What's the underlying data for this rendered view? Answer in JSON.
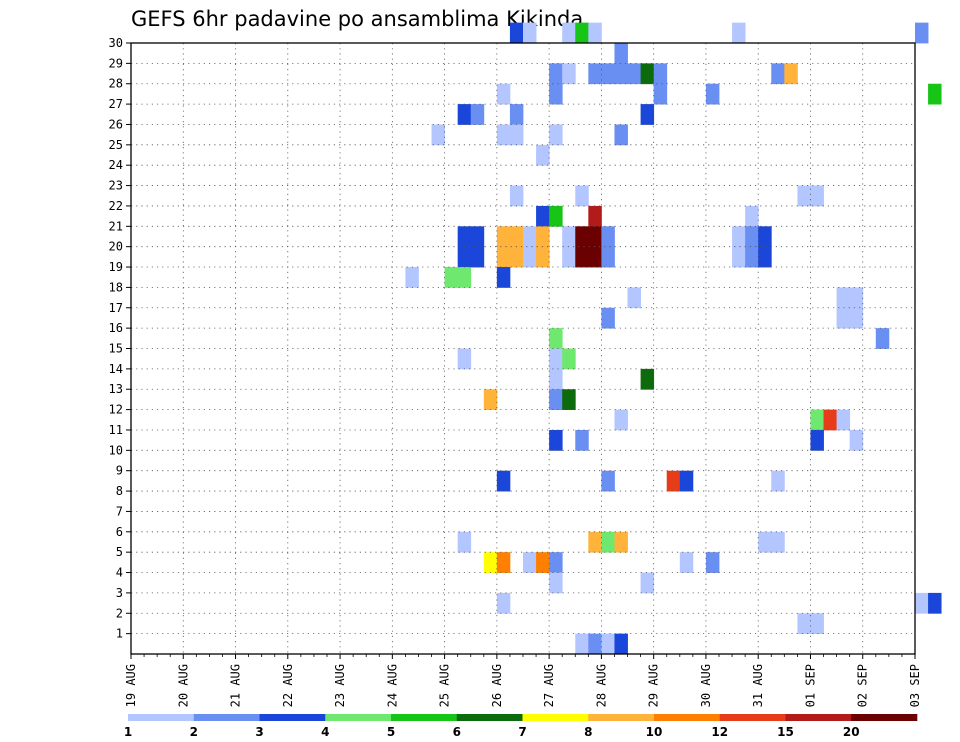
{
  "title": "GEFS 6hr padavine po ansamblima Kikinda",
  "chart_data": {
    "type": "heatmap",
    "title": "GEFS 6hr padavine po ansamblima Kikinda",
    "x_tick_labels": [
      "19 AUG",
      "20 AUG",
      "21 AUG",
      "22 AUG",
      "23 AUG",
      "24 AUG",
      "25 AUG",
      "26 AUG",
      "27 AUG",
      "28 AUG",
      "29 AUG",
      "30 AUG",
      "31 AUG",
      "01 SEP",
      "02 SEP",
      "03 SEP"
    ],
    "y_tick_labels": [
      "1",
      "2",
      "3",
      "4",
      "5",
      "6",
      "7",
      "8",
      "9",
      "10",
      "11",
      "12",
      "13",
      "14",
      "15",
      "16",
      "17",
      "18",
      "19",
      "20",
      "21",
      "22",
      "23",
      "24",
      "25",
      "26",
      "27",
      "28",
      "29",
      "30"
    ],
    "ylim": [
      0,
      30
    ],
    "grid": true,
    "time_step_hours": 6,
    "legend": {
      "placement": "bottom",
      "labels": [
        "1",
        "2",
        "3",
        "4",
        "5",
        "6",
        "7",
        "8",
        "10",
        "12",
        "15",
        "20"
      ],
      "colors": [
        "#b3c6ff",
        "#6a8ff2",
        "#1a47d9",
        "#6ee86e",
        "#16c516",
        "#0d6b0d",
        "#ffff00",
        "#ffb33a",
        "#ff8000",
        "#e63c1a",
        "#b31a1a",
        "#6b0000"
      ]
    },
    "columns": [
      "member",
      "time_step",
      "level"
    ],
    "cells": [
      [
        30,
        29,
        3
      ],
      [
        30,
        30,
        1
      ],
      [
        30,
        33,
        1
      ],
      [
        30,
        34,
        5
      ],
      [
        30,
        35,
        1
      ],
      [
        30,
        46,
        1
      ],
      [
        30,
        60,
        2
      ],
      [
        29,
        37,
        2
      ],
      [
        28,
        32,
        2
      ],
      [
        28,
        33,
        1
      ],
      [
        28,
        35,
        2
      ],
      [
        28,
        36,
        2
      ],
      [
        28,
        37,
        2
      ],
      [
        28,
        38,
        2
      ],
      [
        28,
        39,
        6
      ],
      [
        28,
        40,
        2
      ],
      [
        28,
        49,
        2
      ],
      [
        28,
        50,
        8
      ],
      [
        27,
        28,
        1
      ],
      [
        27,
        32,
        2
      ],
      [
        27,
        40,
        2
      ],
      [
        27,
        44,
        2
      ],
      [
        27,
        61,
        5
      ],
      [
        26,
        25,
        3
      ],
      [
        26,
        26,
        2
      ],
      [
        26,
        29,
        2
      ],
      [
        26,
        39,
        3
      ],
      [
        25,
        23,
        1
      ],
      [
        25,
        28,
        1
      ],
      [
        25,
        29,
        1
      ],
      [
        25,
        32,
        1
      ],
      [
        25,
        37,
        2
      ],
      [
        24,
        31,
        1
      ],
      [
        22,
        29,
        1
      ],
      [
        22,
        34,
        1
      ],
      [
        22,
        51,
        1
      ],
      [
        22,
        52,
        1
      ],
      [
        21,
        31,
        3
      ],
      [
        21,
        32,
        5
      ],
      [
        21,
        35,
        11
      ],
      [
        21,
        47,
        1
      ],
      [
        20,
        25,
        3
      ],
      [
        20,
        26,
        3
      ],
      [
        20,
        28,
        8
      ],
      [
        20,
        29,
        8
      ],
      [
        20,
        30,
        1
      ],
      [
        20,
        31,
        8
      ],
      [
        20,
        33,
        1
      ],
      [
        20,
        34,
        12
      ],
      [
        20,
        35,
        12
      ],
      [
        20,
        36,
        2
      ],
      [
        20,
        46,
        1
      ],
      [
        20,
        47,
        2
      ],
      [
        20,
        48,
        3
      ],
      [
        19,
        25,
        3
      ],
      [
        19,
        26,
        3
      ],
      [
        19,
        28,
        8
      ],
      [
        19,
        29,
        8
      ],
      [
        19,
        30,
        1
      ],
      [
        19,
        31,
        8
      ],
      [
        19,
        33,
        1
      ],
      [
        19,
        34,
        12
      ],
      [
        19,
        35,
        12
      ],
      [
        19,
        36,
        2
      ],
      [
        19,
        46,
        1
      ],
      [
        19,
        47,
        2
      ],
      [
        19,
        48,
        3
      ],
      [
        18,
        21,
        1
      ],
      [
        18,
        24,
        4
      ],
      [
        18,
        25,
        4
      ],
      [
        18,
        28,
        3
      ],
      [
        17,
        38,
        1
      ],
      [
        17,
        54,
        1
      ],
      [
        17,
        55,
        1
      ],
      [
        16,
        36,
        2
      ],
      [
        16,
        54,
        1
      ],
      [
        16,
        55,
        1
      ],
      [
        15,
        32,
        4
      ],
      [
        15,
        57,
        2
      ],
      [
        14,
        25,
        1
      ],
      [
        14,
        32,
        1
      ],
      [
        14,
        33,
        4
      ],
      [
        13,
        32,
        1
      ],
      [
        13,
        39,
        6
      ],
      [
        12,
        27,
        8
      ],
      [
        12,
        32,
        2
      ],
      [
        12,
        33,
        6
      ],
      [
        11,
        37,
        1
      ],
      [
        11,
        52,
        4
      ],
      [
        11,
        53,
        10
      ],
      [
        11,
        54,
        1
      ],
      [
        10,
        32,
        3
      ],
      [
        10,
        34,
        2
      ],
      [
        10,
        52,
        3
      ],
      [
        10,
        55,
        1
      ],
      [
        8,
        28,
        3
      ],
      [
        8,
        36,
        2
      ],
      [
        8,
        41,
        10
      ],
      [
        8,
        42,
        3
      ],
      [
        8,
        49,
        1
      ],
      [
        5,
        25,
        1
      ],
      [
        5,
        35,
        8
      ],
      [
        5,
        36,
        4
      ],
      [
        5,
        37,
        8
      ],
      [
        5,
        48,
        1
      ],
      [
        5,
        49,
        1
      ],
      [
        4,
        27,
        7
      ],
      [
        4,
        28,
        9
      ],
      [
        4,
        30,
        1
      ],
      [
        4,
        31,
        9
      ],
      [
        4,
        32,
        2
      ],
      [
        4,
        42,
        1
      ],
      [
        4,
        44,
        2
      ],
      [
        3,
        32,
        1
      ],
      [
        3,
        39,
        1
      ],
      [
        2,
        28,
        1
      ],
      [
        2,
        60,
        1
      ],
      [
        2,
        61,
        3
      ],
      [
        1,
        51,
        1
      ],
      [
        1,
        52,
        1
      ],
      [
        0,
        34,
        1
      ],
      [
        0,
        35,
        2
      ],
      [
        0,
        36,
        1
      ],
      [
        0,
        37,
        3
      ]
    ]
  }
}
